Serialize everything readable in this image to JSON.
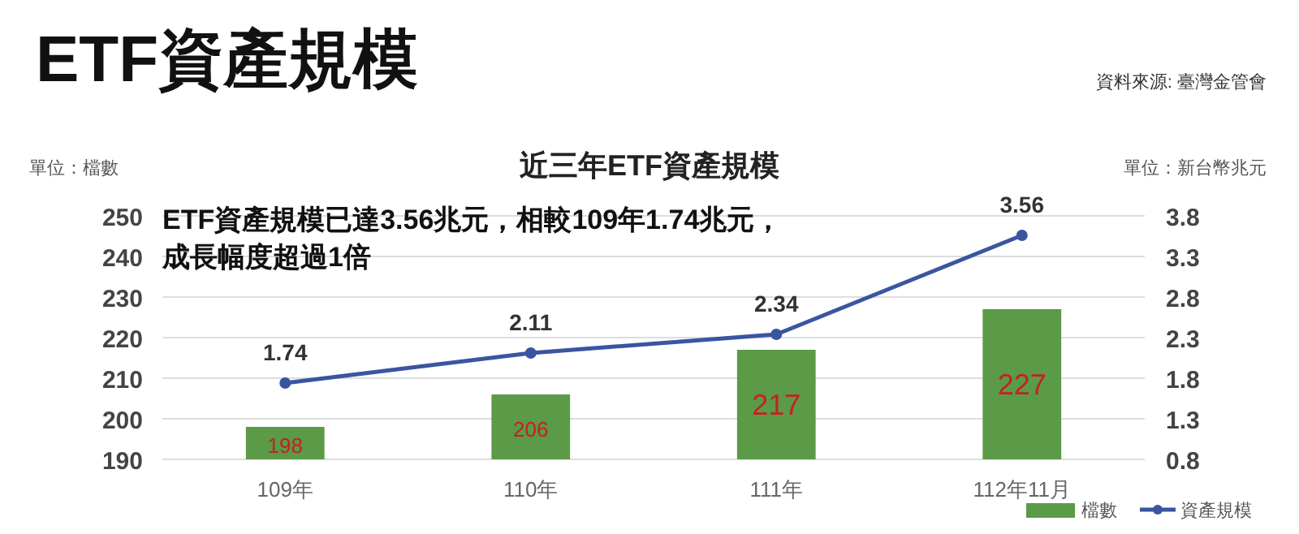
{
  "chart_data": {
    "type": "bar",
    "title": "ETF資產規模",
    "subtitle": "近三年ETF資產規模",
    "ylabel": "單位：檔數",
    "y2label": "單位：新台幣兆元",
    "annotations": [
      "資料來源: 臺灣金管會",
      "ETF資產規模已達3.56兆元，相較109年1.74兆元，",
      "成長幅度超過1倍"
    ],
    "categories": [
      "109年",
      "110年",
      "111年",
      "112年11月"
    ],
    "series": [
      {
        "name": "檔數",
        "color": "#5b9a47",
        "values": [
          198,
          206,
          217,
          227
        ]
      },
      {
        "name": "資產規模",
        "type": "line",
        "axis": "y2",
        "color": "#3a55a0",
        "values": [
          1.74,
          2.11,
          2.34,
          3.56
        ]
      }
    ],
    "ylim": [
      190,
      250
    ],
    "yticks": [
      190,
      200,
      210,
      220,
      230,
      240,
      250
    ],
    "y2lim": [
      0.8,
      3.8
    ],
    "y2ticks": [
      0.8,
      1.3,
      1.8,
      2.3,
      2.8,
      3.3,
      3.8
    ],
    "data_labels": true,
    "grid": "y",
    "legend": "bottom right",
    "marker": "circle",
    "line_style": "solid"
  }
}
